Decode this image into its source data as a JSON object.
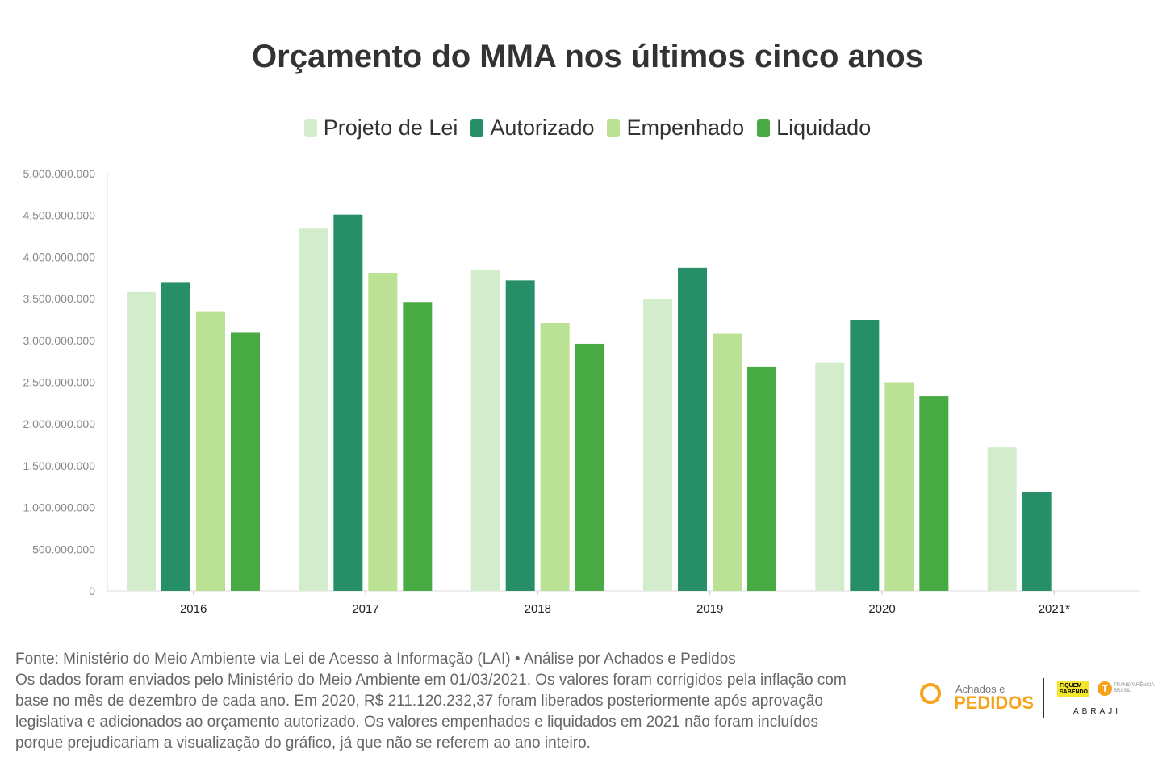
{
  "chart_data": {
    "type": "bar",
    "title": "Orçamento do MMA nos últimos cinco anos",
    "categories": [
      "2016",
      "2017",
      "2018",
      "2019",
      "2020",
      "2021*"
    ],
    "series": [
      {
        "name": "Projeto de Lei",
        "color": "#d3edcc",
        "values": [
          3580000000,
          4340000000,
          3850000000,
          3490000000,
          2730000000,
          1720000000
        ]
      },
      {
        "name": "Autorizado",
        "color": "#268f67",
        "values": [
          3700000000,
          4510000000,
          3720000000,
          3870000000,
          3240000000,
          1180000000
        ]
      },
      {
        "name": "Empenhado",
        "color": "#bbe294",
        "values": [
          3350000000,
          3810000000,
          3210000000,
          3080000000,
          2500000000,
          null
        ]
      },
      {
        "name": "Liquidado",
        "color": "#48aa43",
        "values": [
          3100000000,
          3460000000,
          2960000000,
          2680000000,
          2330000000,
          null
        ]
      }
    ],
    "yticks": [
      "0",
      "500.000.000",
      "1.000.000.000",
      "1.500.000.000",
      "2.000.000.000",
      "2.500.000.000",
      "3.000.000.000",
      "3.500.000.000",
      "4.000.000.000",
      "4.500.000.000",
      "5.000.000.000"
    ],
    "ylim": [
      0,
      5000000000
    ],
    "xlabel": "",
    "ylabel": "",
    "legend_position": "top-center"
  },
  "footer": {
    "lines": [
      "Fonte: Ministério do Meio Ambiente via Lei de Acesso à Informação (LAI) • Análise por Achados e Pedidos",
      "Os dados foram enviados pelo Ministério do Meio Ambiente em 01/03/2021. Os valores foram corrigidos pela inflação com",
      "base no mês de dezembro de cada ano. Em 2020, R$ 211.120.232,37 foram liberados posteriormente após aprovação",
      "legislativa e adicionados ao orçamento autorizado. Os valores empenhados e liquidados em 2021 não foram incluídos",
      "porque prejudicariam a visualização do gráfico, já que não se referem ao ano inteiro."
    ]
  },
  "logos": {
    "achados": "Achados e",
    "pedidos": "PEDIDOS",
    "fiquem": "FIQUEM SABENDO",
    "transparencia": "TRANSPARÊNCIA BRASIL",
    "abraji": "ABRAJI"
  }
}
